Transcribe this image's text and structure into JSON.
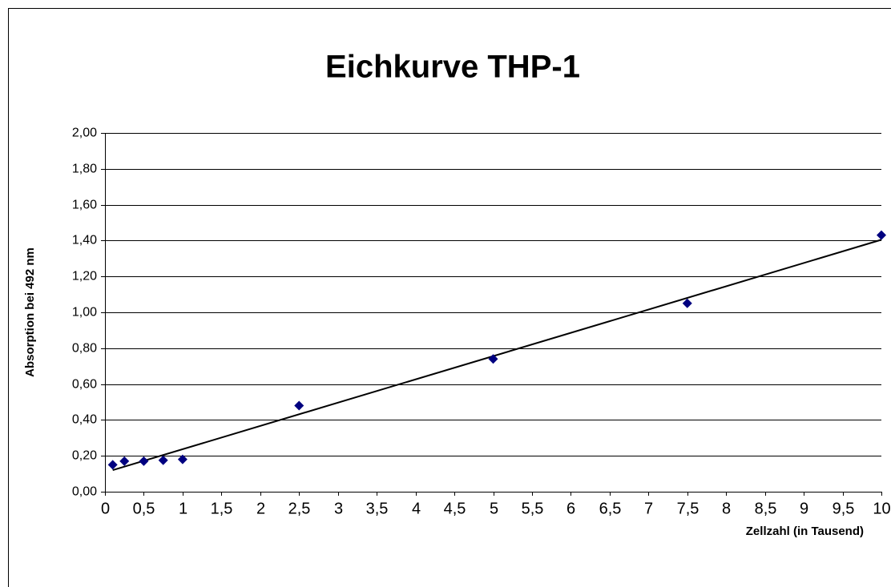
{
  "chart_data": {
    "type": "scatter",
    "title": "Eichkurve THP-1",
    "x_label": "Zellzahl (in Tausend)",
    "y_label": "Absorption bei 492 nm",
    "series": [
      {
        "name": "THP-1",
        "color": "#000080",
        "x": [
          0.1,
          0.25,
          0.5,
          0.75,
          1,
          2.5,
          5,
          7.5,
          10
        ],
        "values": [
          0.15,
          0.17,
          0.17,
          0.175,
          0.18,
          0.48,
          0.74,
          1.05,
          1.43
        ]
      }
    ],
    "trendline": "linear",
    "xlim": [
      0,
      10
    ],
    "xticks": [
      0,
      {
        "value": 0.5,
        "label": "0,5"
      },
      1,
      {
        "value": 1.5,
        "label": "1,5"
      },
      2,
      {
        "value": 2.5,
        "label": "2,5"
      },
      3,
      {
        "value": 3.5,
        "label": "3,5"
      },
      4,
      {
        "value": 4.5,
        "label": "4,5"
      },
      5,
      {
        "value": 5.5,
        "label": "5,5"
      },
      6,
      {
        "value": 6.5,
        "label": "6,5"
      },
      7,
      {
        "value": 7.5,
        "label": "7,5"
      },
      8,
      {
        "value": 8.5,
        "label": "8,5"
      },
      9,
      {
        "value": 9.5,
        "label": "9,5"
      },
      10
    ],
    "ylim": [
      0,
      2
    ],
    "yticks": [
      {
        "value": 0,
        "label": "0,00"
      },
      {
        "value": 0.2,
        "label": "0,20"
      },
      {
        "value": 0.4,
        "label": "0,40"
      },
      {
        "value": 0.6,
        "label": "0,60"
      },
      {
        "value": 0.8,
        "label": "0,80"
      },
      {
        "value": 1,
        "label": "1,00"
      },
      {
        "value": 1.2,
        "label": "1,20"
      },
      {
        "value": 1.4,
        "label": "1,40"
      },
      {
        "value": 1.6,
        "label": "1,60"
      },
      {
        "value": 1.8,
        "label": "1,80"
      },
      {
        "value": 2,
        "label": "2,00"
      }
    ],
    "grid": true
  }
}
